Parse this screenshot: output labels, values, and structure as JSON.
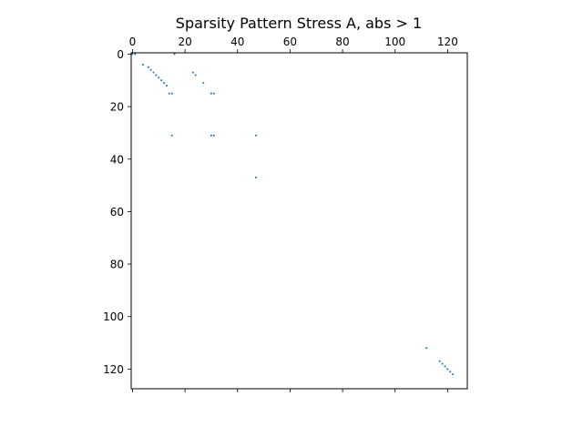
{
  "chart_data": {
    "type": "scatter",
    "title": "Sparsity Pattern Stress A, abs > 1",
    "xlabel": "",
    "ylabel": "",
    "xlim": [
      -0.5,
      127.5
    ],
    "ylim": [
      127.5,
      -0.5
    ],
    "x_ticks": [
      0,
      20,
      40,
      60,
      80,
      100,
      120
    ],
    "y_ticks": [
      0,
      20,
      40,
      60,
      80,
      100,
      120
    ],
    "x_tick_labels": [
      "0",
      "20",
      "40",
      "60",
      "80",
      "100",
      "120"
    ],
    "y_tick_labels": [
      "0",
      "20",
      "40",
      "60",
      "80",
      "100",
      "120"
    ],
    "x_axis_position": "top",
    "grid": false,
    "marker_color": "#1f77b4",
    "points": [
      {
        "col": 0,
        "row": 0
      },
      {
        "col": 1,
        "row": 0
      },
      {
        "col": 16,
        "row": 0
      },
      {
        "col": 4,
        "row": 4
      },
      {
        "col": 6,
        "row": 5
      },
      {
        "col": 7,
        "row": 6
      },
      {
        "col": 8,
        "row": 7
      },
      {
        "col": 23,
        "row": 7
      },
      {
        "col": 9,
        "row": 8
      },
      {
        "col": 24,
        "row": 8
      },
      {
        "col": 10,
        "row": 9
      },
      {
        "col": 11,
        "row": 10
      },
      {
        "col": 12,
        "row": 11
      },
      {
        "col": 27,
        "row": 11
      },
      {
        "col": 13,
        "row": 12
      },
      {
        "col": 14,
        "row": 15
      },
      {
        "col": 15,
        "row": 15
      },
      {
        "col": 30,
        "row": 15
      },
      {
        "col": 31,
        "row": 15
      },
      {
        "col": 15,
        "row": 31
      },
      {
        "col": 30,
        "row": 31
      },
      {
        "col": 31,
        "row": 31
      },
      {
        "col": 47,
        "row": 31
      },
      {
        "col": 47,
        "row": 47
      },
      {
        "col": 112,
        "row": 112
      },
      {
        "col": 117,
        "row": 117
      },
      {
        "col": 118,
        "row": 118
      },
      {
        "col": 119,
        "row": 119
      },
      {
        "col": 120,
        "row": 120
      },
      {
        "col": 121,
        "row": 121
      },
      {
        "col": 122,
        "row": 122
      }
    ]
  }
}
